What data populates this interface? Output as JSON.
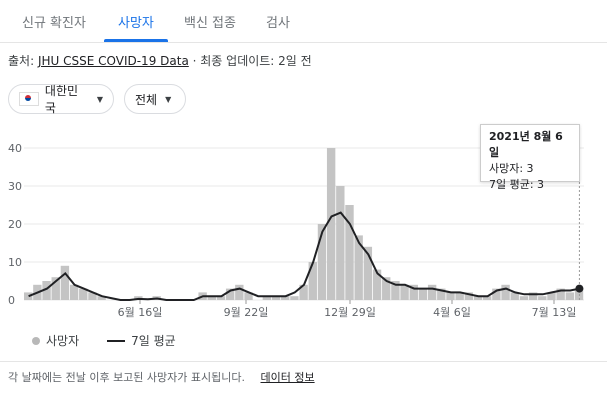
{
  "tabs": [
    "신규 확진자",
    "사망자",
    "백신 접종",
    "검사"
  ],
  "source": {
    "prefix": "출처:",
    "link": "JHU CSSE COVID-19 Data",
    "suffix": "· 최종 업데이트: 2일 전"
  },
  "filters": {
    "country": "대한민국",
    "range": "전체"
  },
  "tooltip": {
    "date": "2021년 8월 6일",
    "deaths": "사망자: 3",
    "avg": "7일 평균: 3"
  },
  "legend": {
    "deaths": "사망자",
    "avg": "7일 평균"
  },
  "footer": {
    "note": "각 날짜에는 전날 이후 보고된 사망자가 표시됩니다.",
    "link": "데이터 정보"
  },
  "chart_data": {
    "type": "bar",
    "x_ticks": [
      "6월 16일",
      "9월 22일",
      "12월 29일",
      "4월 6일",
      "7월 13일"
    ],
    "y_ticks": [
      0,
      10,
      20,
      30,
      40
    ],
    "ylim": [
      0,
      40
    ],
    "series": [
      {
        "name": "사망자",
        "type": "bar",
        "values": [
          2,
          4,
          5,
          6,
          9,
          4,
          3,
          2,
          1,
          0,
          0,
          0,
          1,
          0,
          1,
          0,
          0,
          0,
          0,
          2,
          1,
          1,
          3,
          4,
          2,
          0,
          1,
          1,
          1,
          1,
          4,
          10,
          20,
          40,
          30,
          25,
          17,
          14,
          8,
          6,
          5,
          4,
          4,
          3,
          4,
          3,
          2,
          2,
          2,
          1,
          1,
          3,
          4,
          2,
          1,
          2,
          1,
          2,
          3,
          2,
          3
        ]
      },
      {
        "name": "7일 평균",
        "type": "line",
        "values": [
          1,
          2,
          3,
          5,
          7,
          4,
          3,
          2,
          1,
          0.5,
          0,
          0,
          0.3,
          0.2,
          0.4,
          0,
          0,
          0,
          0,
          1,
          1,
          1,
          2.5,
          3,
          2,
          1,
          1,
          1,
          1,
          2,
          4,
          10,
          18,
          22,
          23,
          20,
          15,
          12,
          7,
          5,
          4,
          4,
          3,
          3,
          3,
          2.5,
          2,
          2,
          1.5,
          1,
          1,
          2.5,
          3,
          2,
          1.5,
          1.5,
          1.5,
          2,
          2.5,
          2.5,
          3
        ]
      }
    ]
  }
}
